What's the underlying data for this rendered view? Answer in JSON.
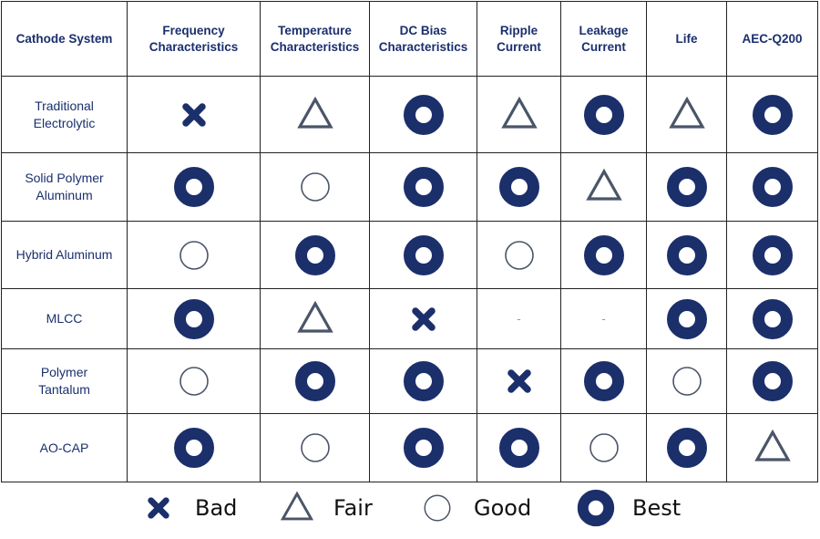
{
  "columns": [
    "Cathode System",
    "Frequency\nCharacteristics",
    "Temperature\nCharacteristics",
    "DC Bias\nCharacteristics",
    "Ripple\nCurrent",
    "Leakage\nCurrent",
    "Life",
    "AEC-Q200"
  ],
  "rows": [
    {
      "name": "Traditional\nElectrolytic",
      "ratings": [
        "bad",
        "fair",
        "best",
        "fair",
        "best",
        "fair",
        "best"
      ]
    },
    {
      "name": "Solid Polymer\nAluminum",
      "ratings": [
        "best",
        "good",
        "best",
        "best",
        "fair",
        "best",
        "best"
      ]
    },
    {
      "name": "Hybrid Aluminum",
      "ratings": [
        "good",
        "best",
        "best",
        "good",
        "best",
        "best",
        "best"
      ]
    },
    {
      "name": "MLCC",
      "ratings": [
        "best",
        "fair",
        "bad",
        "-",
        "-",
        "best",
        "best"
      ]
    },
    {
      "name": "Polymer\nTantalum",
      "ratings": [
        "good",
        "best",
        "best",
        "bad",
        "best",
        "good",
        "best"
      ]
    },
    {
      "name": "AO-CAP",
      "ratings": [
        "best",
        "good",
        "best",
        "best",
        "good",
        "best",
        "fair"
      ]
    }
  ],
  "legend": [
    {
      "key": "bad",
      "label": "Bad",
      "icon": "x-mark-icon"
    },
    {
      "key": "fair",
      "label": "Fair",
      "icon": "triangle-icon"
    },
    {
      "key": "good",
      "label": "Good",
      "icon": "open-circle-icon"
    },
    {
      "key": "best",
      "label": "Best",
      "icon": "filled-ring-icon"
    }
  ],
  "colors": {
    "header_text": "#1a2f6e",
    "best_fill": "#1b2f6b",
    "bad_fill": "#1b2f6b",
    "fair_stroke": "#4a5568",
    "good_stroke": "#4a5568",
    "dash": "#8a97b8",
    "border": "#222222"
  }
}
